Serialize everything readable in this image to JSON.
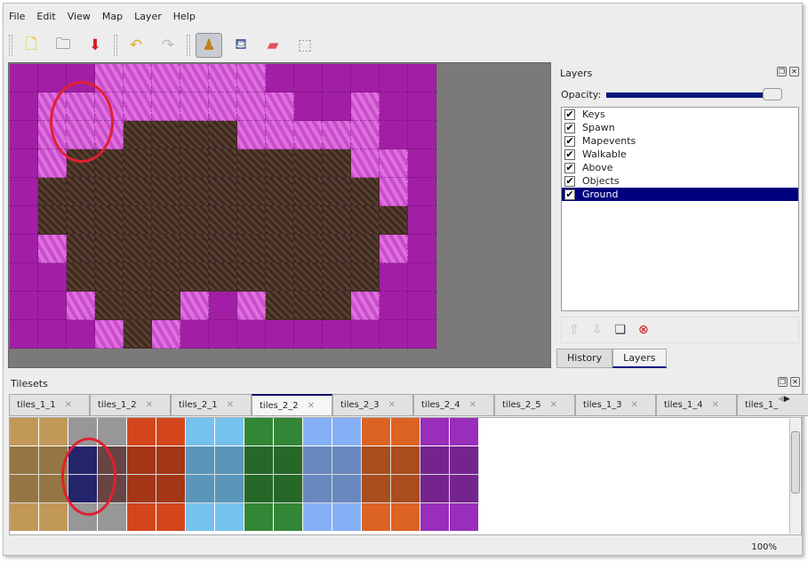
{
  "menu": [
    "File",
    "Edit",
    "View",
    "Map",
    "Layer",
    "Help"
  ],
  "toolbar": {
    "icons": [
      "new-file-icon",
      "open-icon",
      "save-icon",
      "undo-icon",
      "redo-icon",
      "stamp-brush-icon",
      "bucket-fill-icon",
      "eraser-icon",
      "rect-select-icon"
    ],
    "active": "stamp-brush-icon"
  },
  "map": {
    "rows": [
      "mmmppppppmmmmmm",
      "mpppppppppmmpmm",
      "mpppddddpppppm",
      "mpddddddddddppm",
      "mddddddddddddpm",
      "mdddddddddddddm",
      "mpdddddddddddpm",
      "mmdddddddddddmm",
      "mmpdddpmpdddpmm",
      "mmmpdpmmmmmmmmm"
    ]
  },
  "layers": {
    "title": "Layers",
    "opacity_label": "Opacity:",
    "opacity": 1.0,
    "items": [
      {
        "name": "Keys",
        "visible": true
      },
      {
        "name": "Spawn",
        "visible": true
      },
      {
        "name": "Mapevents",
        "visible": true
      },
      {
        "name": "Walkable",
        "visible": true
      },
      {
        "name": "Above",
        "visible": true
      },
      {
        "name": "Objects",
        "visible": true
      },
      {
        "name": "Ground",
        "visible": true
      }
    ],
    "selected": "Ground",
    "tabs": [
      "History",
      "Layers"
    ],
    "active_tab": "Layers"
  },
  "tilesets": {
    "title": "Tilesets",
    "tabs": [
      "tiles_1_1",
      "tiles_1_2",
      "tiles_2_1",
      "tiles_2_2",
      "tiles_2_3",
      "tiles_2_4",
      "tiles_2_5",
      "tiles_1_3",
      "tiles_1_4",
      "tiles_1_"
    ],
    "active_tab": "tiles_2_2",
    "swatches": [
      "#b08a50",
      "#8a8888",
      "#c0401a",
      "#6ab0d8",
      "#2e7a30",
      "#7aa0e0",
      "#c85a20",
      "#8a2aa8"
    ]
  },
  "status": {
    "zoom": "100%"
  }
}
